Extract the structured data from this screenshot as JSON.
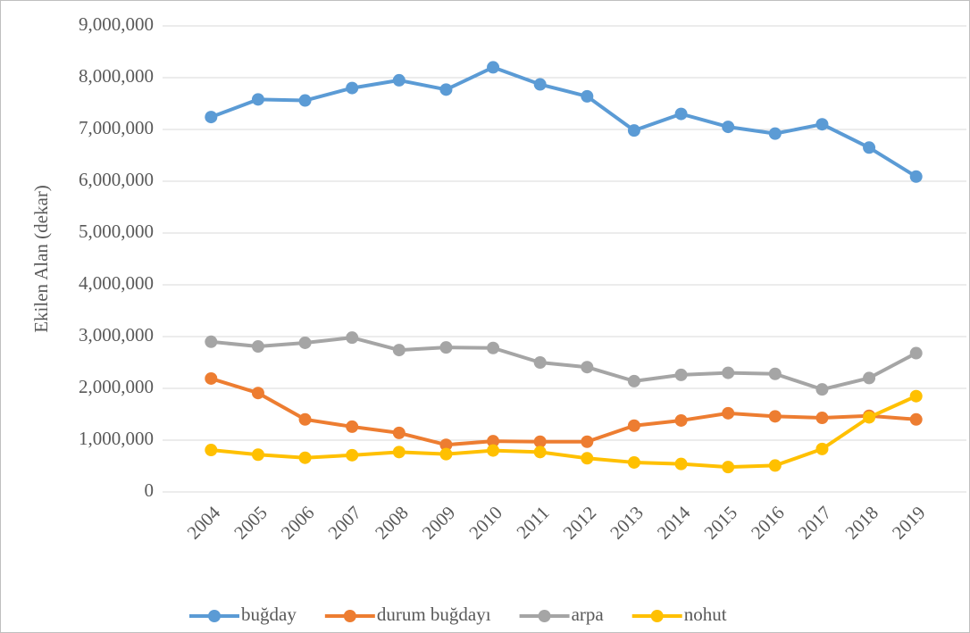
{
  "chart_data": {
    "type": "line",
    "y_label": "Ekilen Alan (dekar)",
    "categories": [
      "2004",
      "2005",
      "2006",
      "2007",
      "2008",
      "2009",
      "2010",
      "2011",
      "2012",
      "2013",
      "2014",
      "2015",
      "2016",
      "2017",
      "2018",
      "2019"
    ],
    "series": [
      {
        "name": "buğday",
        "color": "#5b9bd5",
        "values": [
          7240000,
          7580000,
          7560000,
          7800000,
          7950000,
          7770000,
          8200000,
          7870000,
          7640000,
          6980000,
          7300000,
          7050000,
          6920000,
          7100000,
          6650000,
          6090000
        ]
      },
      {
        "name": "durum buğdayı",
        "color": "#ed7d31",
        "values": [
          2190000,
          1910000,
          1400000,
          1260000,
          1140000,
          910000,
          980000,
          970000,
          970000,
          1280000,
          1380000,
          1520000,
          1460000,
          1430000,
          1470000,
          1400000
        ]
      },
      {
        "name": "arpa",
        "color": "#a5a5a5",
        "values": [
          2900000,
          2810000,
          2880000,
          2980000,
          2740000,
          2790000,
          2780000,
          2500000,
          2410000,
          2140000,
          2260000,
          2300000,
          2280000,
          1980000,
          2200000,
          2680000
        ]
      },
      {
        "name": "nohut",
        "color": "#ffc000",
        "values": [
          810000,
          720000,
          660000,
          710000,
          770000,
          730000,
          800000,
          770000,
          650000,
          570000,
          540000,
          480000,
          510000,
          830000,
          1440000,
          1850000
        ]
      }
    ],
    "ylim": [
      0,
      9000000
    ],
    "yticks": [
      0,
      {
        "value": 1000000,
        "label": "1,000,000"
      },
      {
        "value": 2000000,
        "label": "2,000,000"
      },
      {
        "value": 3000000,
        "label": "3,000,000"
      },
      {
        "value": 4000000,
        "label": "4,000,000"
      },
      {
        "value": 5000000,
        "label": "5,000,000"
      },
      {
        "value": 6000000,
        "label": "6,000,000"
      },
      {
        "value": 7000000,
        "label": "7,000,000"
      },
      {
        "value": 8000000,
        "label": "8,000,000"
      },
      {
        "value": 9000000,
        "label": "9,000,000"
      }
    ],
    "grid": true,
    "legend": "bottom"
  }
}
